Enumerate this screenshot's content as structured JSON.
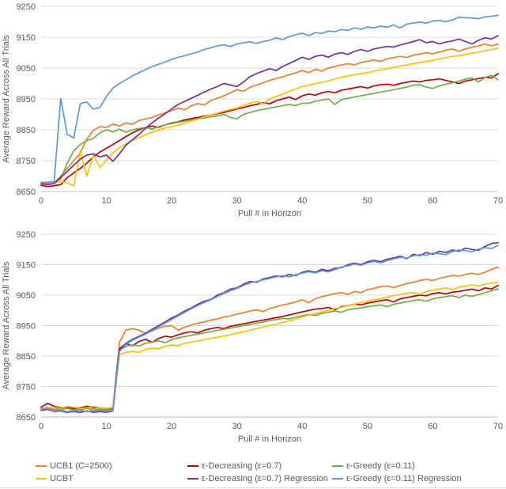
{
  "style": {
    "background": "#ffffff",
    "text_color": "#595959",
    "gridline_color": "#d9d9d9",
    "axis_line_color": "#bfbfbf"
  },
  "legend": {
    "items": [
      {
        "label": "UCB1 (C=2500)",
        "color": "#ED7D31"
      },
      {
        "label": "ε-Decreasing (ε=0.7)",
        "color": "#C00000"
      },
      {
        "label": "ε-Greedy (ε=0.11)",
        "color": "#70AD47"
      },
      {
        "label": "UCBT",
        "color": "#FFC000"
      },
      {
        "label": "ε-Decreasing (ε=0.7) Regression",
        "color": "#7030A0"
      },
      {
        "label": "ε-Greedy (ε=0.11) Regression",
        "color": "#5B9BD5"
      }
    ]
  },
  "chart_data": [
    {
      "type": "line",
      "title": "",
      "xlabel": "Pull # in Horizon",
      "ylabel": "Average Reward Across All Trials",
      "xlim": [
        0,
        70
      ],
      "ylim": [
        8650,
        9250
      ],
      "x_ticks": [
        0,
        10,
        20,
        30,
        40,
        50,
        60,
        70
      ],
      "y_ticks": [
        8650,
        8750,
        8850,
        8950,
        9050,
        9150,
        9250
      ],
      "x_step": 1,
      "grid": true,
      "legend_position": "bottom",
      "series": [
        {
          "name": "UCB1 (C=2500)",
          "color": "#ED7D31",
          "values": [
            8678,
            8675,
            8678,
            8700,
            8725,
            8750,
            8775,
            8820,
            8848,
            8860,
            8858,
            8868,
            8862,
            8872,
            8868,
            8880,
            8885,
            8890,
            8898,
            8905,
            8912,
            8920,
            8915,
            8928,
            8935,
            8930,
            8945,
            8952,
            8960,
            8970,
            8980,
            8975,
            8988,
            8995,
            9002,
            9010,
            9016,
            9022,
            9028,
            9034,
            9042,
            9035,
            9046,
            9040,
            9050,
            9055,
            9060,
            9064,
            9060,
            9068,
            9072,
            9076,
            9072,
            9080,
            9084,
            9088,
            9084,
            9092,
            9095,
            9100,
            9096,
            9102,
            9108,
            9112,
            9104,
            9112,
            9118,
            9122,
            9128,
            9122,
            9128
          ]
        },
        {
          "name": "ε-Decreasing (ε=0.7)",
          "color": "#C00000",
          "values": [
            8670,
            8666,
            8669,
            8672,
            8695,
            8710,
            8725,
            8742,
            8762,
            8778,
            8790,
            8802,
            8815,
            8828,
            8840,
            8850,
            8858,
            8862,
            8858,
            8866,
            8872,
            8876,
            8882,
            8886,
            8890,
            8894,
            8898,
            8902,
            8906,
            8912,
            8918,
            8922,
            8928,
            8932,
            8938,
            8934,
            8944,
            8950,
            8956,
            8948,
            8960,
            8966,
            8962,
            8970,
            8974,
            8970,
            8978,
            8982,
            8986,
            8990,
            8985,
            8992,
            8996,
            8998,
            8994,
            9000,
            9004,
            9008,
            9005,
            9010,
            9012,
            9015,
            9010,
            9005,
            9000,
            9008,
            9012,
            9016,
            9020,
            9018,
            9032
          ]
        },
        {
          "name": "ε-Greedy (ε=0.11)",
          "color": "#70AD47",
          "values": [
            8680,
            8678,
            8681,
            8690,
            8742,
            8782,
            8802,
            8815,
            8822,
            8840,
            8850,
            8843,
            8852,
            8842,
            8850,
            8854,
            8858,
            8852,
            8860,
            8866,
            8870,
            8874,
            8878,
            8882,
            8885,
            8888,
            8892,
            8895,
            8900,
            8890,
            8885,
            8900,
            8906,
            8912,
            8916,
            8920,
            8924,
            8928,
            8932,
            8928,
            8936,
            8936,
            8942,
            8946,
            8950,
            8932,
            8948,
            8952,
            8956,
            8960,
            8964,
            8968,
            8972,
            8976,
            8980,
            8984,
            8988,
            8994,
            8996,
            8988,
            8984,
            8992,
            8998,
            9002,
            9008,
            9014,
            9018,
            9005,
            9020,
            9026,
            9012
          ]
        },
        {
          "name": "UCBT",
          "color": "#FFC000",
          "values": [
            8680,
            8680,
            8678,
            8682,
            8678,
            8668,
            8780,
            8700,
            8768,
            8728,
            8752,
            8775,
            8792,
            8805,
            8815,
            8825,
            8834,
            8842,
            8850,
            8855,
            8860,
            8865,
            8872,
            8878,
            8884,
            8892,
            8898,
            8904,
            8910,
            8916,
            8920,
            8928,
            8936,
            8942,
            8934,
            8950,
            8958,
            8966,
            8974,
            8982,
            8990,
            8994,
            9000,
            9004,
            9008,
            9015,
            9020,
            9024,
            9028,
            9032,
            9035,
            9040,
            9044,
            9048,
            9052,
            9056,
            9060,
            9064,
            9068,
            9072,
            9075,
            9080,
            9084,
            9088,
            9090,
            9094,
            9098,
            9102,
            9106,
            9110,
            9115
          ]
        },
        {
          "name": "ε-Decreasing (ε=0.7) Regression",
          "color": "#7030A0",
          "values": [
            8675,
            8672,
            8676,
            8695,
            8715,
            8735,
            8755,
            8768,
            8772,
            8762,
            8768,
            8748,
            8772,
            8800,
            8818,
            8835,
            8855,
            8872,
            8888,
            8902,
            8918,
            8932,
            8942,
            8952,
            8962,
            8972,
            8982,
            8990,
            9000,
            8995,
            8990,
            9005,
            9022,
            9032,
            9040,
            9048,
            9042,
            9055,
            9065,
            9075,
            9085,
            9078,
            9088,
            9092,
            9085,
            9095,
            9100,
            9094,
            9104,
            9110,
            9104,
            9112,
            9116,
            9120,
            9118,
            9125,
            9130,
            9136,
            9142,
            9132,
            9136,
            9128,
            9134,
            9138,
            9144,
            9136,
            9128,
            9140,
            9148,
            9144,
            9155
          ]
        },
        {
          "name": "ε-Greedy (ε=0.11) Regression",
          "color": "#5B9BD5",
          "values": [
            8678,
            8680,
            8682,
            8952,
            8835,
            8824,
            8935,
            8940,
            8917,
            8922,
            8958,
            8985,
            9000,
            9012,
            9025,
            9035,
            9045,
            9055,
            9062,
            9070,
            9078,
            9085,
            9090,
            9096,
            9102,
            9110,
            9116,
            9122,
            9125,
            9120,
            9128,
            9132,
            9135,
            9130,
            9136,
            9140,
            9148,
            9142,
            9152,
            9158,
            9163,
            9155,
            9165,
            9162,
            9170,
            9168,
            9175,
            9172,
            9180,
            9176,
            9183,
            9180,
            9186,
            9182,
            9190,
            9180,
            9192,
            9196,
            9199,
            9196,
            9202,
            9204,
            9200,
            9206,
            9215,
            9213,
            9212,
            9210,
            9216,
            9218,
            9221
          ]
        }
      ]
    },
    {
      "type": "line",
      "title": "",
      "xlabel": "Pull # in Horizon",
      "ylabel": "Average Reward Across All Trials",
      "xlim": [
        0,
        70
      ],
      "ylim": [
        8650,
        9250
      ],
      "x_ticks": [
        0,
        10,
        20,
        30,
        40,
        50,
        60,
        70
      ],
      "y_ticks": [
        8650,
        8750,
        8850,
        8950,
        9050,
        9150,
        9250
      ],
      "x_step": 1,
      "grid": true,
      "legend_position": "bottom",
      "series": [
        {
          "name": "UCB1 (C=2500)",
          "color": "#ED7D31",
          "values": [
            8678,
            8682,
            8675,
            8678,
            8680,
            8675,
            8678,
            8682,
            8678,
            8680,
            8675,
            8680,
            8895,
            8935,
            8940,
            8935,
            8925,
            8932,
            8942,
            8948,
            8950,
            8935,
            8945,
            8952,
            8958,
            8962,
            8968,
            8972,
            8978,
            8982,
            8988,
            8992,
            8998,
            9002,
            8996,
            9006,
            9012,
            9018,
            9022,
            9028,
            9035,
            9025,
            9038,
            9045,
            9050,
            9055,
            9058,
            9052,
            9062,
            9058,
            9068,
            9072,
            9078,
            9080,
            9075,
            9082,
            9088,
            9092,
            9098,
            9102,
            9098,
            9105,
            9110,
            9115,
            9112,
            9118,
            9122,
            9118,
            9125,
            9135,
            9142
          ]
        },
        {
          "name": "ε-Decreasing (ε=0.7)",
          "color": "#C00000",
          "values": [
            8682,
            8695,
            8685,
            8680,
            8682,
            8678,
            8680,
            8685,
            8682,
            8680,
            8678,
            8680,
            8875,
            8890,
            8884,
            8898,
            8905,
            8895,
            8908,
            8915,
            8912,
            8920,
            8926,
            8930,
            8926,
            8935,
            8940,
            8944,
            8940,
            8948,
            8952,
            8956,
            8960,
            8964,
            8968,
            8972,
            8976,
            8980,
            8985,
            8990,
            8995,
            9000,
            9004,
            9006,
            9010,
            9002,
            9012,
            9016,
            9020,
            9018,
            9024,
            9028,
            9032,
            9035,
            9028,
            9038,
            9042,
            9046,
            9050,
            9048,
            9055,
            9058,
            9054,
            9060,
            9062,
            9066,
            9070,
            9064,
            9074,
            9070,
            9082
          ]
        },
        {
          "name": "ε-Greedy (ε=0.11)",
          "color": "#70AD47",
          "values": [
            8675,
            8678,
            8672,
            8675,
            8678,
            8672,
            8675,
            8678,
            8672,
            8675,
            8672,
            8676,
            8868,
            8882,
            8886,
            8883,
            8892,
            8896,
            8900,
            8894,
            8904,
            8910,
            8914,
            8918,
            8922,
            8926,
            8930,
            8934,
            8938,
            8942,
            8946,
            8950,
            8954,
            8958,
            8962,
            8966,
            8970,
            8974,
            8972,
            8978,
            8982,
            8986,
            8984,
            8990,
            8994,
            8998,
            8994,
            9002,
            9005,
            9008,
            9012,
            9015,
            9018,
            9012,
            9020,
            9024,
            9028,
            9032,
            9035,
            9030,
            9038,
            9042,
            9045,
            9048,
            9042,
            9050,
            9046,
            9052,
            9058,
            9064,
            9070
          ]
        },
        {
          "name": "UCBT",
          "color": "#FFC000",
          "values": [
            8678,
            8680,
            8682,
            8678,
            8685,
            8682,
            8678,
            8680,
            8685,
            8680,
            8678,
            8682,
            8855,
            8862,
            8866,
            8862,
            8872,
            8876,
            8874,
            8882,
            8886,
            8884,
            8892,
            8896,
            8900,
            8904,
            8908,
            8912,
            8916,
            8920,
            8925,
            8930,
            8935,
            8940,
            8945,
            8950,
            8955,
            8960,
            8965,
            8972,
            8978,
            8984,
            8990,
            8995,
            9000,
            9006,
            9010,
            9016,
            9020,
            9026,
            9030,
            9035,
            9038,
            9044,
            9048,
            9052,
            9056,
            9058,
            9052,
            9062,
            9066,
            9070,
            9074,
            9068,
            9076,
            9080,
            9084,
            9080,
            9086,
            9090,
            9092
          ]
        },
        {
          "name": "ε-Decreasing (ε=0.7) Regression",
          "color": "#7030A0",
          "values": [
            8672,
            8675,
            8668,
            8670,
            8665,
            8668,
            8665,
            8670,
            8665,
            8668,
            8665,
            8670,
            8868,
            8892,
            8905,
            8915,
            8925,
            8938,
            8950,
            8962,
            8975,
            8985,
            8998,
            9008,
            9020,
            9030,
            9036,
            9050,
            9058,
            9070,
            9074,
            9086,
            9095,
            9092,
            9103,
            9108,
            9113,
            9110,
            9118,
            9114,
            9125,
            9130,
            9125,
            9135,
            9130,
            9138,
            9140,
            9150,
            9155,
            9150,
            9160,
            9164,
            9160,
            9168,
            9172,
            9178,
            9170,
            9184,
            9180,
            9190,
            9184,
            9194,
            9190,
            9198,
            9194,
            9204,
            9200,
            9197,
            9210,
            9220,
            9222
          ]
        },
        {
          "name": "ε-Greedy (ε=0.11) Regression",
          "color": "#5B9BD5",
          "values": [
            8675,
            8678,
            8670,
            8672,
            8668,
            8670,
            8672,
            8668,
            8670,
            8672,
            8668,
            8672,
            8865,
            8888,
            8902,
            8912,
            8922,
            8934,
            8946,
            8958,
            8970,
            8982,
            8994,
            9005,
            9016,
            9026,
            9035,
            9045,
            9056,
            9064,
            9072,
            9082,
            9090,
            9095,
            9100,
            9105,
            9110,
            9114,
            9110,
            9117,
            9122,
            9127,
            9123,
            9130,
            9126,
            9134,
            9142,
            9146,
            9152,
            9148,
            9156,
            9161,
            9156,
            9163,
            9169,
            9174,
            9172,
            9179,
            9183,
            9181,
            9188,
            9186,
            9183,
            9193,
            9198,
            9196,
            9192,
            9201,
            9206,
            9203,
            9213
          ]
        }
      ]
    }
  ]
}
